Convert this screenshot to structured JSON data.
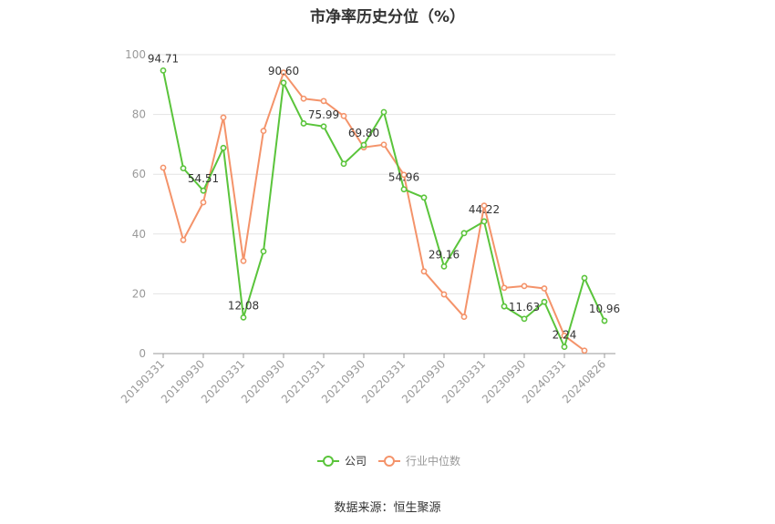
{
  "title": "市净率历史分位（%）",
  "source": "数据来源：恒生聚源",
  "chart_data": {
    "type": "line",
    "title": "市净率历史分位（%）",
    "ylim": [
      0,
      100
    ],
    "yticks": [
      0,
      20,
      40,
      60,
      80,
      100
    ],
    "grid": true,
    "legend_position": "bottom",
    "x": [
      "20190331",
      "20190630",
      "20190930",
      "20191231",
      "20200331",
      "20200630",
      "20200930",
      "20201231",
      "20210331",
      "20210630",
      "20210930",
      "20211231",
      "20220331",
      "20220630",
      "20220930",
      "20221231",
      "20230331",
      "20230630",
      "20230930",
      "20231231",
      "20240331",
      "20240630",
      "20240826"
    ],
    "xtick_labels": [
      "20190331",
      "20190930",
      "20200331",
      "20200930",
      "20210331",
      "20210930",
      "20220331",
      "20220930",
      "20230331",
      "20230930",
      "20240331",
      "20240826"
    ],
    "series": [
      {
        "name": "公司",
        "color": "#5ac43b",
        "values": [
          94.71,
          62.0,
          54.51,
          68.8,
          12.08,
          34.2,
          90.6,
          77.0,
          75.99,
          63.5,
          69.8,
          80.8,
          54.96,
          52.2,
          29.16,
          40.3,
          44.22,
          15.8,
          11.63,
          17.3,
          2.24,
          25.3,
          10.96
        ],
        "labels": {
          "0": "94.71",
          "2": "54.51",
          "4": "12.08",
          "6": "90.60",
          "8": "75.99",
          "10": "69.80",
          "12": "54.96",
          "14": "29.16",
          "16": "44.22",
          "18": "11.63",
          "20": "2.24",
          "22": "10.96"
        }
      },
      {
        "name": "行业中位数",
        "color": "#f4936a",
        "values": [
          62.2,
          38.0,
          50.6,
          79.0,
          31.0,
          74.5,
          94.0,
          85.3,
          84.5,
          79.5,
          69.0,
          69.9,
          59.8,
          27.5,
          19.8,
          12.3,
          49.5,
          22.0,
          22.6,
          21.8,
          6.0,
          1.0,
          null
        ]
      }
    ]
  }
}
